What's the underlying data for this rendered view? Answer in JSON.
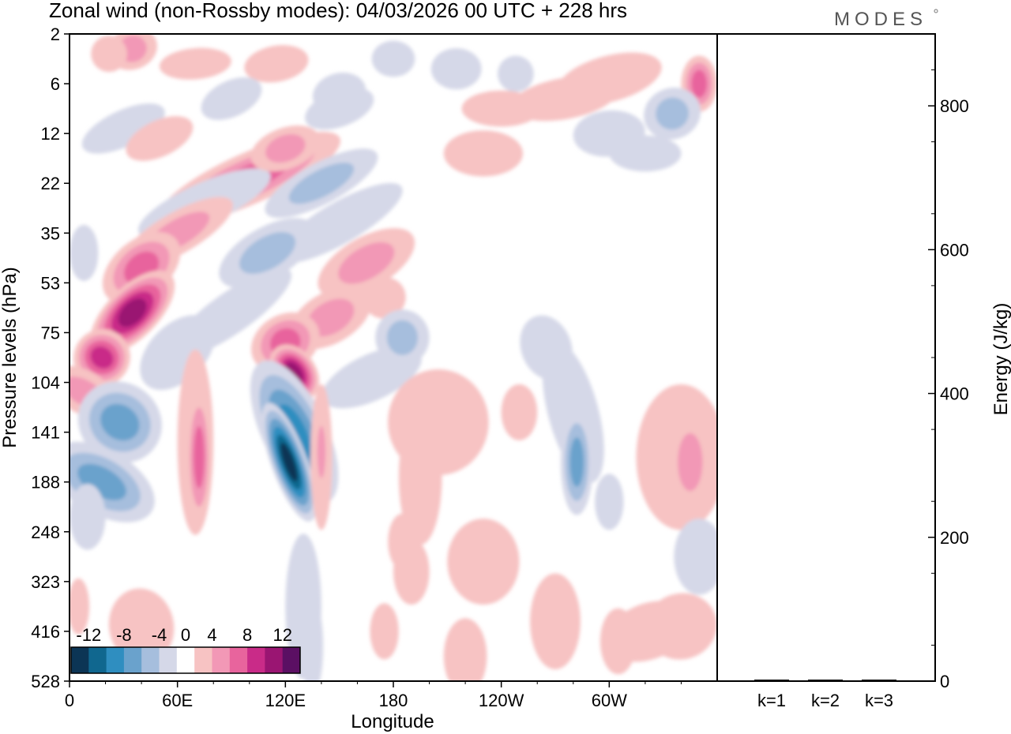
{
  "chart_data": {
    "type": "heatmap",
    "title": "Zonal wind (non-Rossby modes):  04/03/2026  00 UTC  + 228 hrs",
    "logo": "MODES",
    "xlabel": "Longitude",
    "ylabel": "Pressure levels (hPa)",
    "y2label": "Energy (J/kg)",
    "x_ticks": [
      "0",
      "60E",
      "120E",
      "180",
      "120W",
      "60W"
    ],
    "x_tick_values": [
      0,
      60,
      120,
      180,
      240,
      300
    ],
    "xlim": [
      0,
      360
    ],
    "y_ticks": [
      "2",
      "6",
      "12",
      "22",
      "35",
      "53",
      "75",
      "104",
      "141",
      "188",
      "248",
      "323",
      "416",
      "528"
    ],
    "energy_ticks": [
      "0",
      "200",
      "400",
      "600",
      "800"
    ],
    "energy_tick_values": [
      0,
      200,
      400,
      600,
      800
    ],
    "energy_lim": [
      0,
      900
    ],
    "energy_categories": [
      "k=1",
      "k=2",
      "k=3"
    ],
    "energy_values": [
      1,
      1,
      1
    ],
    "colorbar": {
      "levels": [
        -14,
        -12,
        -10,
        -8,
        -6,
        -4,
        -2,
        2,
        4,
        6,
        8,
        10,
        12,
        14
      ],
      "labels": [
        "-12",
        "-8",
        "-4",
        "0",
        "4",
        "8",
        "12"
      ],
      "label_values": [
        -12,
        -8,
        -4,
        0,
        4,
        8,
        12
      ],
      "colors": [
        "#0c3555",
        "#10678f",
        "#2f8ec0",
        "#6aa2cc",
        "#a6bedd",
        "#d5d8e8",
        "#ffffff",
        "#f7c3c3",
        "#f298b6",
        "#e8649d",
        "#c92b88",
        "#9a1572",
        "#5b0f63"
      ]
    },
    "features": [
      {
        "name": "tilted-positive-band-upper",
        "sign": "positive",
        "peak": 12,
        "lon": [
          5,
          45
        ],
        "level": [
          5,
          8
        ]
      },
      {
        "name": "tilted-negative-band-lower",
        "sign": "negative",
        "peak": -10,
        "lon": [
          2,
          40
        ],
        "level": [
          7,
          10
        ]
      },
      {
        "name": "positive-core-120E",
        "sign": "positive",
        "peak": 12,
        "lon": [
          108,
          132
        ],
        "level": [
          6,
          8
        ]
      },
      {
        "name": "negative-core-120E",
        "sign": "negative",
        "peak": -14,
        "lon": [
          105,
          135
        ],
        "level": [
          7,
          10
        ]
      },
      {
        "name": "positive-column-70E",
        "sign": "positive",
        "peak": 8,
        "lon": [
          63,
          78
        ],
        "level": [
          7,
          10
        ]
      },
      {
        "name": "negative-column-280E",
        "sign": "negative",
        "peak": -8,
        "lon": [
          272,
          292
        ],
        "level": [
          6,
          10
        ]
      },
      {
        "name": "positive-patch-340E",
        "sign": "positive",
        "peak": 6,
        "lon": [
          320,
          360
        ],
        "level": [
          7,
          10
        ]
      }
    ]
  }
}
